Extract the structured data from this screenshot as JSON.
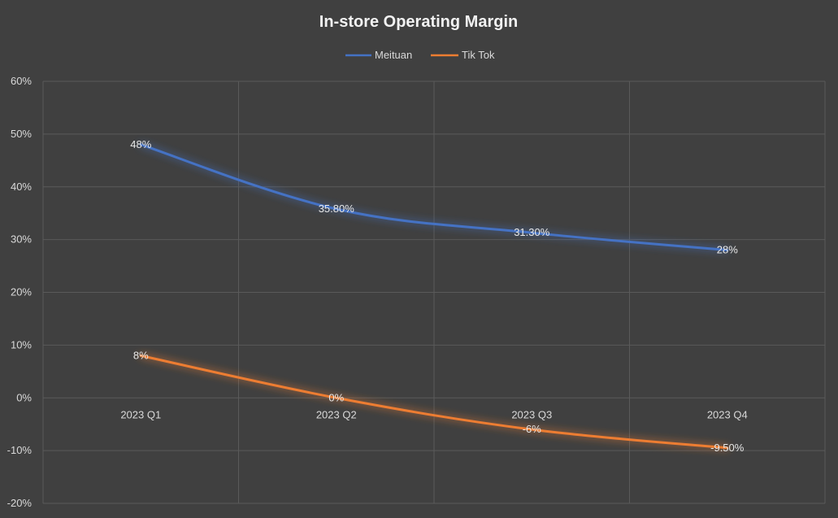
{
  "chart_data": {
    "type": "line",
    "title": "In-store Operating Margin",
    "xlabel": "",
    "ylabel": "",
    "categories": [
      "2023 Q1",
      "2023 Q2",
      "2023 Q3",
      "2023 Q4"
    ],
    "series": [
      {
        "name": "Meituan",
        "color": "#4472c4",
        "values": [
          48,
          35.8,
          31.3,
          28
        ],
        "labels": [
          "48%",
          "35.80%",
          "31.30%",
          "28%"
        ]
      },
      {
        "name": "Tik Tok",
        "color": "#ed7d31",
        "values": [
          8,
          0,
          -6,
          -9.5
        ],
        "labels": [
          "8%",
          "0%",
          "-6%",
          "-9.50%"
        ]
      }
    ],
    "ylim": [
      -20,
      60
    ],
    "yticks": [
      60,
      50,
      40,
      30,
      20,
      10,
      0,
      -10,
      -20
    ],
    "ytick_labels": [
      "60%",
      "50%",
      "40%",
      "30%",
      "20%",
      "10%",
      "0%",
      "-10%",
      "-20%"
    ],
    "grid": true,
    "legend_position": "top-center",
    "background": "#404040"
  }
}
